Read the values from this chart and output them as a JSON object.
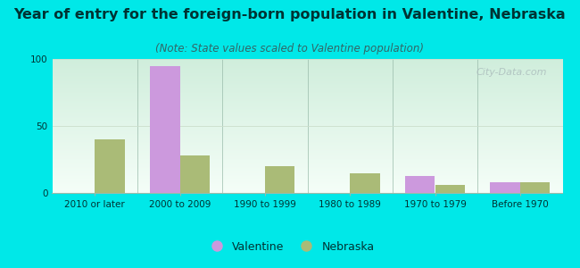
{
  "title": "Year of entry for the foreign-born population in Valentine, Nebraska",
  "subtitle": "(Note: State values scaled to Valentine population)",
  "categories": [
    "2010 or later",
    "2000 to 2009",
    "1990 to 1999",
    "1980 to 1989",
    "1970 to 1979",
    "Before 1970"
  ],
  "valentine_values": [
    0,
    95,
    0,
    0,
    13,
    8
  ],
  "nebraska_values": [
    40,
    28,
    20,
    15,
    6,
    8
  ],
  "valentine_color": "#cc99dd",
  "nebraska_color": "#aabb77",
  "background_outer": "#00e8e8",
  "background_plot_grad_top": "#d0eedc",
  "background_plot_grad_bottom": "#f5fef8",
  "ylim": [
    0,
    100
  ],
  "yticks": [
    0,
    50,
    100
  ],
  "bar_width": 0.35,
  "title_fontsize": 11.5,
  "subtitle_fontsize": 8.5,
  "tick_fontsize": 7.5,
  "legend_fontsize": 9,
  "watermark_text": "City-Data.com",
  "watermark_color": "#aabbbb",
  "title_color": "#003333",
  "subtitle_color": "#336666",
  "tick_color": "#003333"
}
